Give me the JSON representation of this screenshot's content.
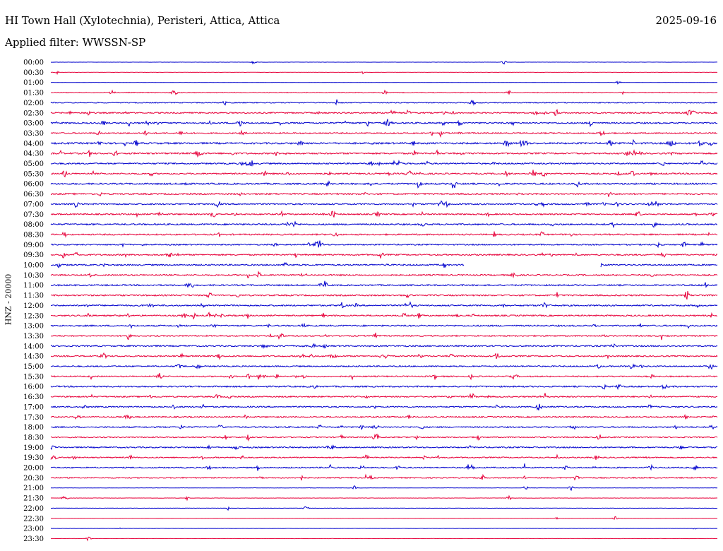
{
  "header": {
    "title": "HI Town Hall (Xylotechnia), Peristeri, Attica, Attica",
    "date": "2025-09-16",
    "filter": "Applied filter: WWSSN-SP"
  },
  "colors": {
    "even_hour": "#0000cc",
    "half_hour": "#e6003a",
    "background": "#ffffff"
  },
  "chart_data": {
    "type": "line",
    "title": "HI Town Hall (Xylotechnia), Peristeri, Attica, Attica",
    "subtitle": "Applied filter: WWSSN-SP",
    "ylabel": "HNZ - 20000",
    "xlabel": "",
    "y_ticks": [
      "00:00",
      "00:30",
      "01:00",
      "01:30",
      "02:00",
      "02:30",
      "03:00",
      "03:30",
      "04:00",
      "04:30",
      "05:00",
      "05:30",
      "06:00",
      "06:30",
      "07:00",
      "07:30",
      "08:00",
      "08:30",
      "09:00",
      "09:30",
      "10:00",
      "10:30",
      "11:00",
      "11:30",
      "12:00",
      "12:30",
      "13:00",
      "13:30",
      "14:00",
      "14:30",
      "15:00",
      "15:30",
      "16:00",
      "16:30",
      "17:00",
      "17:30",
      "18:00",
      "18:30",
      "19:00",
      "19:30",
      "20:00",
      "20:30",
      "21:00",
      "21:30",
      "22:00",
      "22:30",
      "23:00",
      "23:30"
    ],
    "series_colors": [
      "#0000cc",
      "#e6003a"
    ],
    "activity_level": [
      0.08,
      0.1,
      0.08,
      0.35,
      0.4,
      0.55,
      0.6,
      0.55,
      0.7,
      0.65,
      0.6,
      0.6,
      0.65,
      0.65,
      0.6,
      0.55,
      0.65,
      0.6,
      0.55,
      0.6,
      0.6,
      0.6,
      0.6,
      0.6,
      0.6,
      0.6,
      0.6,
      0.55,
      0.6,
      0.55,
      0.55,
      0.55,
      0.6,
      0.55,
      0.55,
      0.55,
      0.55,
      0.5,
      0.55,
      0.5,
      0.5,
      0.5,
      0.12,
      0.12,
      0.12,
      0.1,
      0.08,
      0.08
    ],
    "data_gaps": [
      {
        "row": "10:00",
        "from_fraction": 0.62,
        "to_fraction": 0.825
      }
    ],
    "grid": false,
    "legend": "none"
  }
}
